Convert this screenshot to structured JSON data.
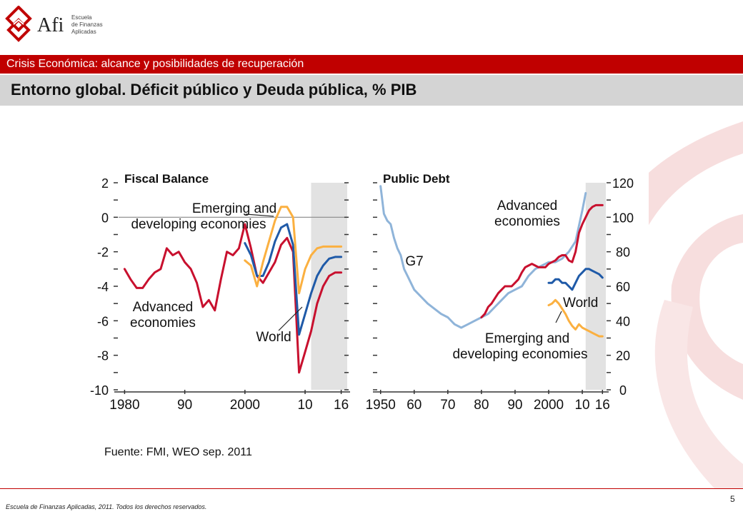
{
  "logo": {
    "brand": "Afi",
    "sub_lines": [
      "Escuela",
      "de Finanzas",
      "Aplicadas"
    ]
  },
  "header": {
    "section": "Crisis Económica: alcance y posibilidades de recuperación",
    "title": "Entorno global. Déficit público y Deuda pública, % PIB"
  },
  "source": "Fuente: FMI, WEO sep. 2011",
  "footer": {
    "copyright": "Escuela de Finanzas Aplicadas, 2011. Todos los derechos reservados.",
    "page": "5"
  },
  "colors": {
    "brand_red": "#c00000",
    "advanced": "#c8102e",
    "world": "#1f5aa8",
    "emerging": "#fbb040",
    "g7": "#8fb4d9",
    "shade": "#e2e2e2"
  },
  "chart_data": [
    {
      "type": "line",
      "title": "Fiscal Balance",
      "x": [
        1980,
        1982,
        1984,
        1986,
        1988,
        1990,
        1992,
        1994,
        1996,
        1998,
        2000,
        2002,
        2004,
        2006,
        2008,
        2010,
        2012,
        2014,
        2016
      ],
      "xticks": [
        1980,
        1990,
        2000,
        2010,
        2016
      ],
      "xtick_labels": [
        "1980",
        "90",
        "2000",
        "10",
        "16"
      ],
      "yticks": [
        2,
        0,
        -2,
        -4,
        -6,
        -8,
        -10
      ],
      "ytick_labels": [
        "2",
        "0",
        "-2",
        "-4",
        "-6",
        "-8",
        "-10"
      ],
      "ylim": [
        -10,
        2
      ],
      "xlim": [
        1979,
        2017
      ],
      "reference_line": 0,
      "projection_shade": [
        2011,
        2017
      ],
      "series": [
        {
          "name": "Advanced economies",
          "x": [
            1980,
            1981,
            1982,
            1983,
            1984,
            1985,
            1986,
            1987,
            1988,
            1989,
            1990,
            1991,
            1992,
            1993,
            1994,
            1995,
            1996,
            1997,
            1998,
            1999,
            2000,
            2001,
            2002,
            2003,
            2004,
            2005,
            2006,
            2007,
            2008,
            2009,
            2010,
            2011,
            2012,
            2013,
            2014,
            2015,
            2016
          ],
          "values": [
            -3.0,
            -3.6,
            -4.1,
            -4.1,
            -3.6,
            -3.2,
            -3.0,
            -1.8,
            -2.2,
            -2.0,
            -2.6,
            -3.0,
            -3.8,
            -5.2,
            -4.8,
            -5.4,
            -3.6,
            -2.0,
            -2.2,
            -1.8,
            -0.4,
            -1.8,
            -3.4,
            -3.8,
            -3.2,
            -2.6,
            -1.6,
            -1.2,
            -2.0,
            -9.0,
            -7.8,
            -6.6,
            -5.0,
            -4.0,
            -3.4,
            -3.2,
            -3.2
          ]
        },
        {
          "name": "World",
          "x": [
            2000,
            2001,
            2002,
            2003,
            2004,
            2005,
            2006,
            2007,
            2008,
            2009,
            2010,
            2011,
            2012,
            2013,
            2014,
            2015,
            2016
          ],
          "values": [
            -1.5,
            -2.2,
            -3.4,
            -3.4,
            -2.6,
            -1.4,
            -0.6,
            -0.4,
            -1.6,
            -6.8,
            -5.6,
            -4.4,
            -3.4,
            -2.8,
            -2.4,
            -2.3,
            -2.3
          ]
        },
        {
          "name": "Emerging and developing economies",
          "x": [
            2000,
            2001,
            2002,
            2003,
            2004,
            2005,
            2006,
            2007,
            2008,
            2009,
            2010,
            2011,
            2012,
            2013,
            2014,
            2015,
            2016
          ],
          "values": [
            -2.5,
            -2.8,
            -4.0,
            -2.6,
            -1.4,
            -0.2,
            0.6,
            0.6,
            0.0,
            -4.4,
            -3.0,
            -2.2,
            -1.8,
            -1.7,
            -1.7,
            -1.7,
            -1.7
          ]
        }
      ],
      "annotations": [
        "Emerging and",
        "developing economies",
        "Advanced",
        "economies",
        "World"
      ]
    },
    {
      "type": "line",
      "title": "Public Debt",
      "x": [
        1950,
        1955,
        1960,
        1965,
        1970,
        1975,
        1980,
        1985,
        1990,
        1995,
        2000,
        2005,
        2010,
        2016
      ],
      "xticks": [
        1950,
        1960,
        1970,
        1980,
        1990,
        2000,
        2010,
        2016
      ],
      "xtick_labels": [
        "1950",
        "60",
        "70",
        "80",
        "90",
        "2000",
        "10",
        "16"
      ],
      "yticks": [
        120,
        100,
        80,
        60,
        40,
        20,
        0
      ],
      "ytick_labels": [
        "120",
        "100",
        "80",
        "60",
        "40",
        "20",
        "0"
      ],
      "ylim": [
        0,
        120
      ],
      "xlim": [
        1949,
        2017
      ],
      "projection_shade": [
        2011,
        2017
      ],
      "series": [
        {
          "name": "G7",
          "x": [
            1950,
            1951,
            1952,
            1953,
            1954,
            1955,
            1956,
            1957,
            1958,
            1960,
            1962,
            1964,
            1966,
            1968,
            1970,
            1972,
            1974,
            1976,
            1978,
            1980,
            1982,
            1984,
            1986,
            1988,
            1990,
            1992,
            1994,
            1996,
            1998,
            2000,
            2002,
            2004,
            2006,
            2008,
            2010,
            2011
          ],
          "values": [
            118,
            102,
            98,
            96,
            88,
            82,
            78,
            70,
            66,
            58,
            54,
            50,
            47,
            44,
            42,
            38,
            36,
            38,
            40,
            42,
            44,
            48,
            52,
            56,
            58,
            60,
            66,
            70,
            72,
            74,
            74,
            76,
            80,
            86,
            104,
            114
          ]
        },
        {
          "name": "Advanced economies",
          "x": [
            1980,
            1981,
            1982,
            1983,
            1984,
            1985,
            1986,
            1987,
            1988,
            1989,
            1990,
            1991,
            1992,
            1993,
            1994,
            1995,
            1996,
            1997,
            1998,
            1999,
            2000,
            2001,
            2002,
            2003,
            2004,
            2005,
            2006,
            2007,
            2008,
            2009,
            2010,
            2011,
            2012,
            2013,
            2014,
            2015,
            2016
          ],
          "values": [
            42,
            44,
            48,
            50,
            53,
            56,
            58,
            60,
            60,
            60,
            62,
            64,
            68,
            71,
            72,
            73,
            72,
            71,
            71,
            71,
            73,
            74,
            75,
            77,
            78,
            78,
            75,
            74,
            80,
            91,
            96,
            100,
            104,
            106,
            107,
            107,
            107
          ]
        },
        {
          "name": "World",
          "x": [
            2000,
            2001,
            2002,
            2003,
            2004,
            2005,
            2006,
            2007,
            2008,
            2009,
            2010,
            2011,
            2012,
            2013,
            2014,
            2015,
            2016
          ],
          "values": [
            62,
            62,
            64,
            64,
            62,
            62,
            60,
            58,
            62,
            66,
            68,
            70,
            70,
            69,
            68,
            67,
            65
          ]
        },
        {
          "name": "Emerging and developing economies",
          "x": [
            2000,
            2001,
            2002,
            2003,
            2004,
            2005,
            2006,
            2007,
            2008,
            2009,
            2010,
            2011,
            2012,
            2013,
            2014,
            2015,
            2016
          ],
          "values": [
            49,
            50,
            52,
            50,
            47,
            44,
            40,
            37,
            35,
            38,
            36,
            35,
            34,
            33,
            32,
            31,
            31
          ]
        }
      ],
      "annotations": [
        "Advanced",
        "economies",
        "G7",
        "World",
        "Emerging and",
        "developing economies"
      ]
    }
  ]
}
